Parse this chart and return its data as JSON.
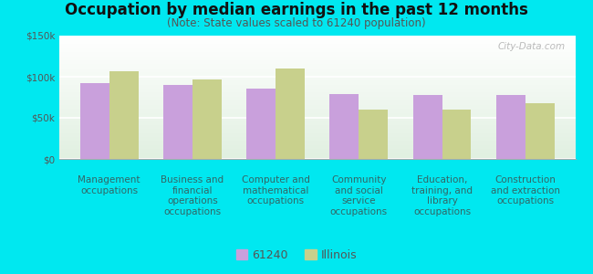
{
  "title": "Occupation by median earnings in the past 12 months",
  "subtitle": "(Note: State values scaled to 61240 population)",
  "categories": [
    "Management\noccupations",
    "Business and\nfinancial\noperations\noccupations",
    "Computer and\nmathematical\noccupations",
    "Community\nand social\nservice\noccupations",
    "Education,\ntraining, and\nlibrary\noccupations",
    "Construction\nand extraction\noccupations"
  ],
  "values_61240": [
    92000,
    90000,
    86000,
    79000,
    78000,
    78000
  ],
  "values_illinois": [
    107000,
    97000,
    110000,
    60000,
    60000,
    68000
  ],
  "color_61240": "#c9a0dc",
  "color_illinois": "#c8d08c",
  "background_color": "#00e8f0",
  "plot_bg": "#e8f2e2",
  "ylabel_ticks": [
    "$0",
    "$50k",
    "$100k",
    "$150k"
  ],
  "ytick_values": [
    0,
    50000,
    100000,
    150000
  ],
  "ylim": [
    0,
    150000
  ],
  "legend_label_61240": "61240",
  "legend_label_illinois": "Illinois",
  "bar_width": 0.35,
  "title_fontsize": 12,
  "subtitle_fontsize": 8.5,
  "tick_fontsize": 7.5,
  "label_fontsize": 7.5,
  "watermark": "City-Data.com"
}
